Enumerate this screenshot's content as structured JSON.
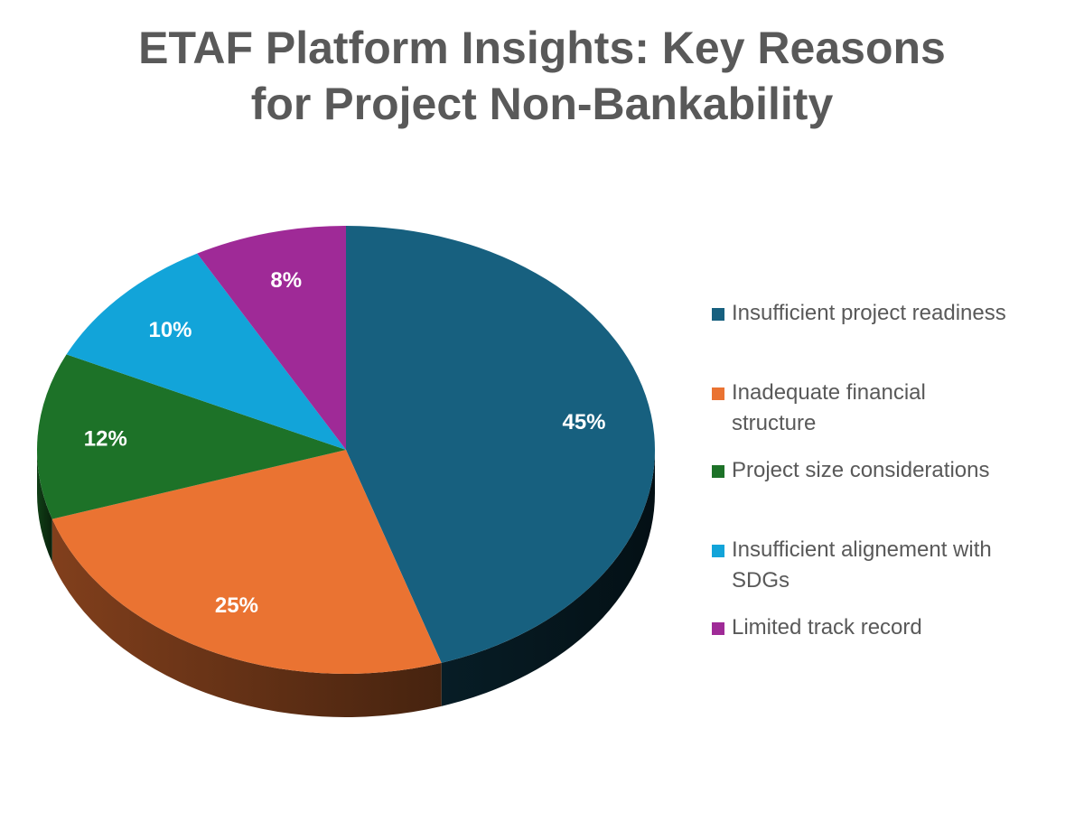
{
  "chart_data": {
    "type": "pie",
    "title_lines": [
      "ETAF Platform Insights: Key Reasons",
      "for Project Non-Bankability"
    ],
    "categories": [
      "Insufficient project readiness",
      "Inadequate financial structure",
      "Project size considerations",
      "Insufficient alignement with SDGs",
      "Limited track record"
    ],
    "values": [
      45,
      25,
      12,
      10,
      8
    ],
    "labels": [
      "45%",
      "25%",
      "12%",
      "10%",
      "8%"
    ],
    "colors": [
      "#17607f",
      "#ea7332",
      "#1d7228",
      "#12a4d9",
      "#9f2a97"
    ],
    "style": "3d-pie",
    "legend_position": "right"
  }
}
